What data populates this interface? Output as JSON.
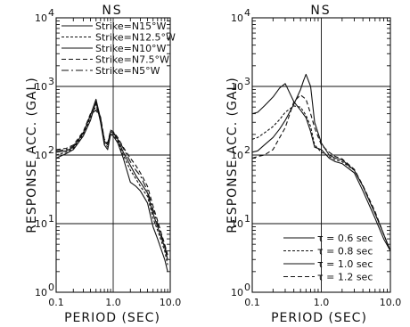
{
  "chart_data": [
    {
      "type": "line",
      "title": "NS",
      "xlabel": "PERIOD (SEC)",
      "ylabel": "RESPONSE ACC. (GAL)",
      "xscale": "log",
      "yscale": "log",
      "xlim": [
        0.1,
        10.0
      ],
      "ylim": [
        1,
        10000
      ],
      "grid": true,
      "legend_position": "top-right",
      "x_ticks": [
        {
          "label": "0.1",
          "value": 0.1
        },
        {
          "label": "1.0",
          "value": 1.0
        },
        {
          "label": "10.0",
          "value": 10.0
        }
      ],
      "y_ticks": [
        {
          "base": "10",
          "exp": "0",
          "value": 1
        },
        {
          "base": "10",
          "exp": "1",
          "value": 10
        },
        {
          "base": "10",
          "exp": "2",
          "value": 100
        },
        {
          "base": "10",
          "exp": "3",
          "value": 1000
        },
        {
          "base": "10",
          "exp": "4",
          "value": 10000
        }
      ],
      "series": [
        {
          "name": "Strike=N15°W",
          "dash": "solid",
          "points": [
            [
              0.1,
              90
            ],
            [
              0.15,
              105
            ],
            [
              0.2,
              120
            ],
            [
              0.3,
              190
            ],
            [
              0.4,
              320
            ],
            [
              0.5,
              600
            ],
            [
              0.6,
              300
            ],
            [
              0.7,
              140
            ],
            [
              0.8,
              120
            ],
            [
              0.9,
              200
            ],
            [
              1.0,
              190
            ],
            [
              1.2,
              150
            ],
            [
              1.5,
              90
            ],
            [
              2.0,
              40
            ],
            [
              2.5,
              35
            ],
            [
              3,
              30
            ],
            [
              4,
              20
            ],
            [
              5,
              9
            ],
            [
              6,
              6
            ],
            [
              8,
              3
            ],
            [
              9,
              2
            ]
          ]
        },
        {
          "name": "Strike=N12.5°W",
          "dash": "3,2",
          "points": [
            [
              0.1,
              100
            ],
            [
              0.15,
              110
            ],
            [
              0.2,
              125
            ],
            [
              0.3,
              200
            ],
            [
              0.4,
              350
            ],
            [
              0.5,
              550
            ],
            [
              0.6,
              320
            ],
            [
              0.7,
              150
            ],
            [
              0.8,
              130
            ],
            [
              0.9,
              210
            ],
            [
              1.0,
              200
            ],
            [
              1.2,
              160
            ],
            [
              1.5,
              100
            ],
            [
              2.0,
              60
            ],
            [
              2.5,
              45
            ],
            [
              3,
              35
            ],
            [
              4,
              25
            ],
            [
              5,
              12
            ],
            [
              6,
              8
            ],
            [
              8,
              4
            ],
            [
              9,
              2.5
            ]
          ]
        },
        {
          "name": "Strike=N10°W",
          "dash": "solid",
          "points": [
            [
              0.1,
              110
            ],
            [
              0.15,
              115
            ],
            [
              0.2,
              130
            ],
            [
              0.3,
              210
            ],
            [
              0.4,
              380
            ],
            [
              0.5,
              650
            ],
            [
              0.6,
              340
            ],
            [
              0.7,
              160
            ],
            [
              0.8,
              140
            ],
            [
              0.9,
              220
            ],
            [
              1.0,
              210
            ],
            [
              1.2,
              170
            ],
            [
              1.5,
              110
            ],
            [
              2.0,
              70
            ],
            [
              2.5,
              50
            ],
            [
              3,
              40
            ],
            [
              4,
              28
            ],
            [
              5,
              14
            ],
            [
              6,
              9
            ],
            [
              8,
              4.5
            ],
            [
              9,
              3
            ]
          ]
        },
        {
          "name": "Strike=N7.5°W",
          "dash": "5,3",
          "points": [
            [
              0.1,
              120
            ],
            [
              0.15,
              125
            ],
            [
              0.2,
              140
            ],
            [
              0.3,
              220
            ],
            [
              0.4,
              400
            ],
            [
              0.5,
              500
            ],
            [
              0.6,
              360
            ],
            [
              0.7,
              170
            ],
            [
              0.8,
              150
            ],
            [
              0.9,
              230
            ],
            [
              1.0,
              220
            ],
            [
              1.2,
              180
            ],
            [
              1.5,
              130
            ],
            [
              2.0,
              90
            ],
            [
              2.5,
              70
            ],
            [
              3,
              55
            ],
            [
              4,
              35
            ],
            [
              5,
              18
            ],
            [
              6,
              11
            ],
            [
              8,
              5
            ],
            [
              9,
              3.5
            ]
          ]
        },
        {
          "name": "Strike=N5°W",
          "dash": "8,3,2,3",
          "points": [
            [
              0.1,
              115
            ],
            [
              0.15,
              120
            ],
            [
              0.2,
              135
            ],
            [
              0.3,
              215
            ],
            [
              0.4,
              390
            ],
            [
              0.5,
              450
            ],
            [
              0.6,
              350
            ],
            [
              0.7,
              165
            ],
            [
              0.8,
              145
            ],
            [
              0.9,
              225
            ],
            [
              1.0,
              215
            ],
            [
              1.2,
              175
            ],
            [
              1.5,
              125
            ],
            [
              2.0,
              80
            ],
            [
              2.5,
              60
            ],
            [
              3,
              50
            ],
            [
              4,
              30
            ],
            [
              5,
              16
            ],
            [
              6,
              10
            ],
            [
              8,
              4.8
            ],
            [
              9,
              3.2
            ]
          ]
        }
      ]
    },
    {
      "type": "line",
      "title": "NS",
      "xlabel": "PERIOD (SEC)",
      "ylabel": "RESPONSE ACC. (GAL)",
      "xscale": "log",
      "yscale": "log",
      "xlim": [
        0.1,
        10.0
      ],
      "ylim": [
        1,
        10000
      ],
      "grid": true,
      "legend_position": "bottom-right",
      "x_ticks": [
        {
          "label": "0.1",
          "value": 0.1
        },
        {
          "label": "1.0",
          "value": 1.0
        },
        {
          "label": "10.0",
          "value": 10.0
        }
      ],
      "y_ticks": [
        {
          "base": "10",
          "exp": "0",
          "value": 1
        },
        {
          "base": "10",
          "exp": "1",
          "value": 10
        },
        {
          "base": "10",
          "exp": "2",
          "value": 100
        },
        {
          "base": "10",
          "exp": "3",
          "value": 1000
        },
        {
          "base": "10",
          "exp": "4",
          "value": 10000
        }
      ],
      "series": [
        {
          "name": "τ = 0.6 sec",
          "dash": "solid",
          "points": [
            [
              0.1,
              400
            ],
            [
              0.12,
              420
            ],
            [
              0.15,
              520
            ],
            [
              0.2,
              700
            ],
            [
              0.25,
              950
            ],
            [
              0.3,
              1100
            ],
            [
              0.4,
              600
            ],
            [
              0.5,
              450
            ],
            [
              0.6,
              350
            ],
            [
              0.7,
              220
            ],
            [
              0.8,
              130
            ],
            [
              1.0,
              120
            ],
            [
              1.3,
              90
            ],
            [
              1.6,
              80
            ],
            [
              2,
              75
            ],
            [
              3,
              55
            ],
            [
              4,
              30
            ],
            [
              6,
              12
            ],
            [
              8,
              6
            ],
            [
              10,
              4
            ]
          ]
        },
        {
          "name": "τ = 0.8 sec",
          "dash": "3,2",
          "points": [
            [
              0.1,
              170
            ],
            [
              0.12,
              180
            ],
            [
              0.15,
              210
            ],
            [
              0.2,
              260
            ],
            [
              0.25,
              330
            ],
            [
              0.3,
              420
            ],
            [
              0.4,
              520
            ],
            [
              0.5,
              500
            ],
            [
              0.6,
              380
            ],
            [
              0.7,
              260
            ],
            [
              0.8,
              140
            ],
            [
              1.0,
              110
            ],
            [
              1.3,
              95
            ],
            [
              1.6,
              85
            ],
            [
              2,
              80
            ],
            [
              3,
              60
            ],
            [
              4,
              35
            ],
            [
              6,
              14
            ],
            [
              8,
              7
            ],
            [
              10,
              4
            ]
          ]
        },
        {
          "name": "τ = 1.0 sec",
          "dash": "solid",
          "points": [
            [
              0.1,
              110
            ],
            [
              0.12,
              115
            ],
            [
              0.15,
              140
            ],
            [
              0.2,
              180
            ],
            [
              0.25,
              240
            ],
            [
              0.3,
              320
            ],
            [
              0.4,
              550
            ],
            [
              0.5,
              900
            ],
            [
              0.55,
              1200
            ],
            [
              0.6,
              1500
            ],
            [
              0.7,
              1000
            ],
            [
              0.8,
              300
            ],
            [
              1.0,
              150
            ],
            [
              1.3,
              100
            ],
            [
              1.6,
              90
            ],
            [
              2,
              85
            ],
            [
              3,
              60
            ],
            [
              4,
              35
            ],
            [
              6,
              14
            ],
            [
              8,
              7
            ],
            [
              10,
              4
            ]
          ]
        },
        {
          "name": "τ = 1.2 sec",
          "dash": "5,3",
          "points": [
            [
              0.1,
              90
            ],
            [
              0.12,
              95
            ],
            [
              0.15,
              100
            ],
            [
              0.2,
              120
            ],
            [
              0.25,
              180
            ],
            [
              0.3,
              250
            ],
            [
              0.4,
              600
            ],
            [
              0.5,
              750
            ],
            [
              0.6,
              650
            ],
            [
              0.7,
              400
            ],
            [
              0.8,
              250
            ],
            [
              1.0,
              140
            ],
            [
              1.3,
              110
            ],
            [
              1.6,
              95
            ],
            [
              2,
              88
            ],
            [
              3,
              62
            ],
            [
              4,
              36
            ],
            [
              6,
              15
            ],
            [
              8,
              7
            ],
            [
              10,
              4
            ]
          ]
        }
      ]
    }
  ]
}
